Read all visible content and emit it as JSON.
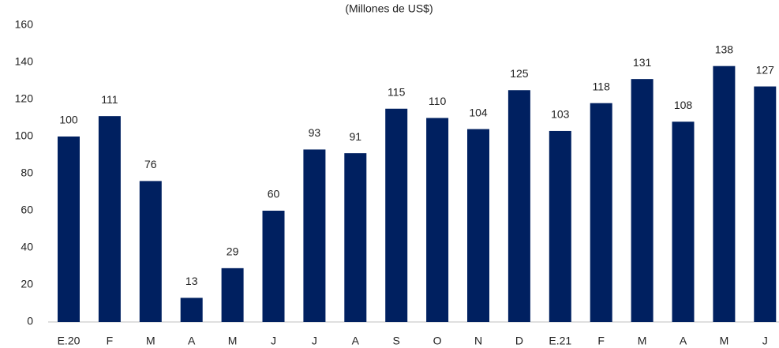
{
  "chart_data": {
    "type": "bar",
    "subtitle": "(Millones de US$)",
    "categories": [
      "E.20",
      "F",
      "M",
      "A",
      "M",
      "J",
      "J",
      "A",
      "S",
      "O",
      "N",
      "D",
      "E.21",
      "F",
      "M",
      "A",
      "M",
      "J"
    ],
    "values": [
      100,
      111,
      76,
      13,
      29,
      60,
      93,
      91,
      115,
      110,
      104,
      125,
      103,
      118,
      131,
      108,
      138,
      127
    ],
    "color": "#002060",
    "ylim": [
      0,
      160
    ],
    "yticks": [
      0,
      20,
      40,
      60,
      80,
      100,
      120,
      140,
      160
    ],
    "grid": false
  }
}
